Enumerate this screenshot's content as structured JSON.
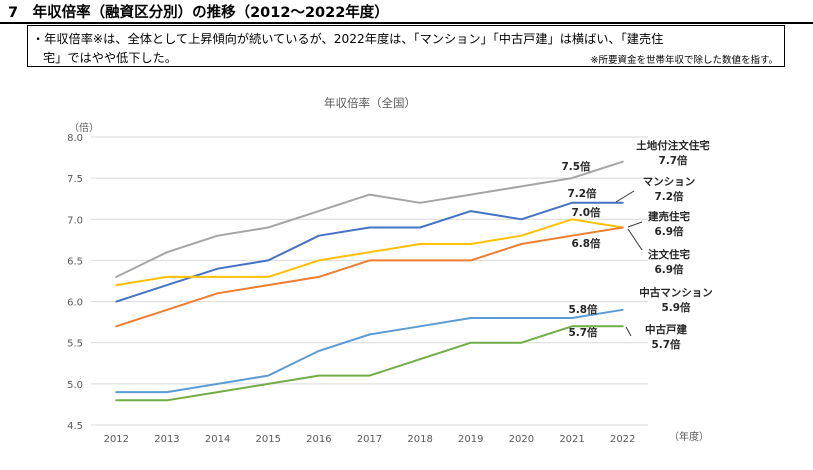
{
  "header": {
    "title": "7　年収倍率（融資区分別）の推移（2012～2022年度）"
  },
  "note": {
    "line1": "・年収倍率※は、全体として上昇傾向が続いているが、2022年度は、「マンション」「中古戸建」は横ばい、「建売住",
    "line2": "宅」ではやや低下した。",
    "footnote": "※所要資金を世帯年収で除した数値を指す。"
  },
  "chart_data": {
    "type": "line",
    "title": "年収倍率（全国）",
    "ylabel": "（倍）",
    "xlabel": "（年度）",
    "ylim": [
      4.5,
      8.0
    ],
    "yticks": [
      "4.5",
      "5.0",
      "5.5",
      "6.0",
      "6.5",
      "7.0",
      "7.5",
      "8.0"
    ],
    "categories": [
      "2012",
      "2013",
      "2014",
      "2015",
      "2016",
      "2017",
      "2018",
      "2019",
      "2020",
      "2021",
      "2022"
    ],
    "grid": true,
    "series": [
      {
        "name": "土地付注文住宅",
        "label_lines": [
          "土地付注文住宅",
          "7.7倍"
        ],
        "point_label": "7.5倍",
        "values": [
          6.3,
          6.6,
          6.8,
          6.9,
          7.1,
          7.3,
          7.2,
          7.3,
          7.4,
          7.5,
          7.7
        ]
      },
      {
        "name": "マンション",
        "label_lines": [
          "マンション",
          "7.2倍"
        ],
        "point_label": "7.2倍",
        "values": [
          6.0,
          6.2,
          6.4,
          6.5,
          6.8,
          6.9,
          6.9,
          7.1,
          7.0,
          7.2,
          7.2
        ]
      },
      {
        "name": "建売住宅",
        "label_lines": [
          "建売住宅",
          "6.9倍"
        ],
        "point_label": "7.0倍",
        "values": [
          6.2,
          6.3,
          6.3,
          6.3,
          6.5,
          6.6,
          6.7,
          6.7,
          6.8,
          7.0,
          6.9
        ]
      },
      {
        "name": "注文住宅",
        "label_lines": [
          "注文住宅",
          "6.9倍"
        ],
        "point_label": "6.8倍",
        "values": [
          5.7,
          5.9,
          6.1,
          6.2,
          6.3,
          6.5,
          6.5,
          6.5,
          6.7,
          6.8,
          6.9
        ]
      },
      {
        "name": "中古マンション",
        "label_lines": [
          "中古マンション",
          "5.9倍"
        ],
        "point_label": "5.8倍",
        "values": [
          4.9,
          4.9,
          5.0,
          5.1,
          5.4,
          5.6,
          5.7,
          5.8,
          5.8,
          5.8,
          5.9
        ]
      },
      {
        "name": "中古戸建",
        "label_lines": [
          "中古戸建",
          "5.7倍"
        ],
        "point_label": "5.7倍",
        "values": [
          4.8,
          4.8,
          4.9,
          5.0,
          5.1,
          5.1,
          5.3,
          5.5,
          5.5,
          5.7,
          5.7
        ]
      }
    ]
  },
  "colors": {
    "土地付注文住宅": "#a5a5a5",
    "マンション": "#4472c4",
    "建売住宅": "#ffc000",
    "注文住宅": "#ed7d31",
    "中古マンション": "#5b9bd5",
    "中古戸建": "#70ad47",
    "grid": "#d9d9d9",
    "axis_text": "#595959"
  }
}
